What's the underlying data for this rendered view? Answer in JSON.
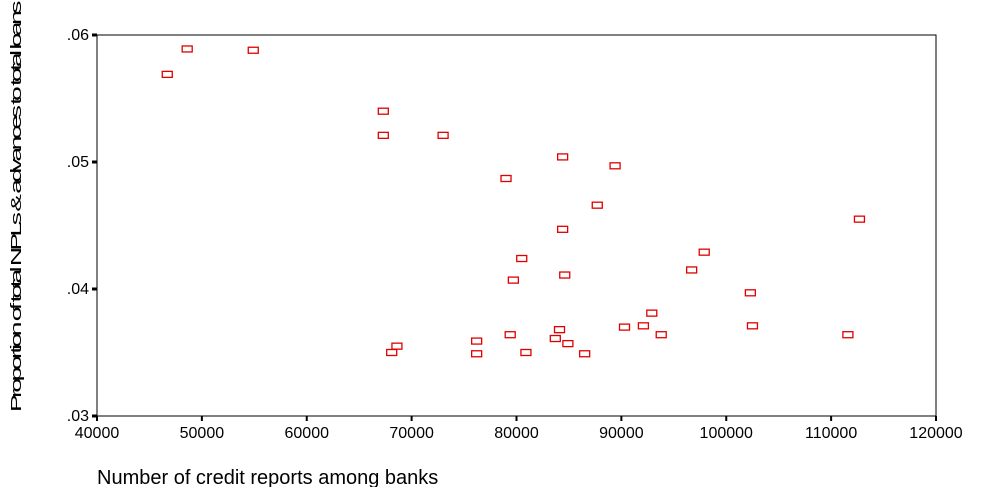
{
  "chart_data": {
    "type": "scatter",
    "title": "",
    "xlabel": "Number of credit reports among banks",
    "ylabel": "Proportion of total NPLs & advances to total loans",
    "xlim": [
      40000,
      120000
    ],
    "ylim": [
      0.03,
      0.06
    ],
    "x_ticks": [
      40000,
      50000,
      60000,
      70000,
      80000,
      90000,
      100000,
      110000,
      120000
    ],
    "x_tick_labels": [
      "40000",
      "50000",
      "60000",
      "70000",
      "80000",
      "90000",
      "100000",
      "110000",
      "120000"
    ],
    "y_ticks": [
      0.03,
      0.04,
      0.05,
      0.06
    ],
    "y_tick_labels": [
      ".03",
      ".04",
      ".05",
      ".06"
    ],
    "grid": false,
    "marker": "open-square",
    "marker_color": "#e00000",
    "points": [
      {
        "x": 46700,
        "y": 0.0569
      },
      {
        "x": 48600,
        "y": 0.0589
      },
      {
        "x": 54900,
        "y": 0.0588
      },
      {
        "x": 67300,
        "y": 0.054
      },
      {
        "x": 67300,
        "y": 0.0521
      },
      {
        "x": 73000,
        "y": 0.0521
      },
      {
        "x": 68100,
        "y": 0.035
      },
      {
        "x": 68600,
        "y": 0.0355
      },
      {
        "x": 76200,
        "y": 0.0359
      },
      {
        "x": 76200,
        "y": 0.0349
      },
      {
        "x": 79000,
        "y": 0.0487
      },
      {
        "x": 79400,
        "y": 0.0364
      },
      {
        "x": 79700,
        "y": 0.0407
      },
      {
        "x": 80500,
        "y": 0.0424
      },
      {
        "x": 80900,
        "y": 0.035
      },
      {
        "x": 83700,
        "y": 0.0361
      },
      {
        "x": 84100,
        "y": 0.0368
      },
      {
        "x": 84400,
        "y": 0.0504
      },
      {
        "x": 84400,
        "y": 0.0447
      },
      {
        "x": 84600,
        "y": 0.0411
      },
      {
        "x": 84900,
        "y": 0.0357
      },
      {
        "x": 86500,
        "y": 0.0349
      },
      {
        "x": 87700,
        "y": 0.0466
      },
      {
        "x": 89400,
        "y": 0.0497
      },
      {
        "x": 90300,
        "y": 0.037
      },
      {
        "x": 92100,
        "y": 0.0371
      },
      {
        "x": 92900,
        "y": 0.0381
      },
      {
        "x": 93800,
        "y": 0.0364
      },
      {
        "x": 96700,
        "y": 0.0415
      },
      {
        "x": 97900,
        "y": 0.0429
      },
      {
        "x": 102300,
        "y": 0.0397
      },
      {
        "x": 102500,
        "y": 0.0371
      },
      {
        "x": 111600,
        "y": 0.0364
      },
      {
        "x": 112700,
        "y": 0.0455
      }
    ]
  }
}
